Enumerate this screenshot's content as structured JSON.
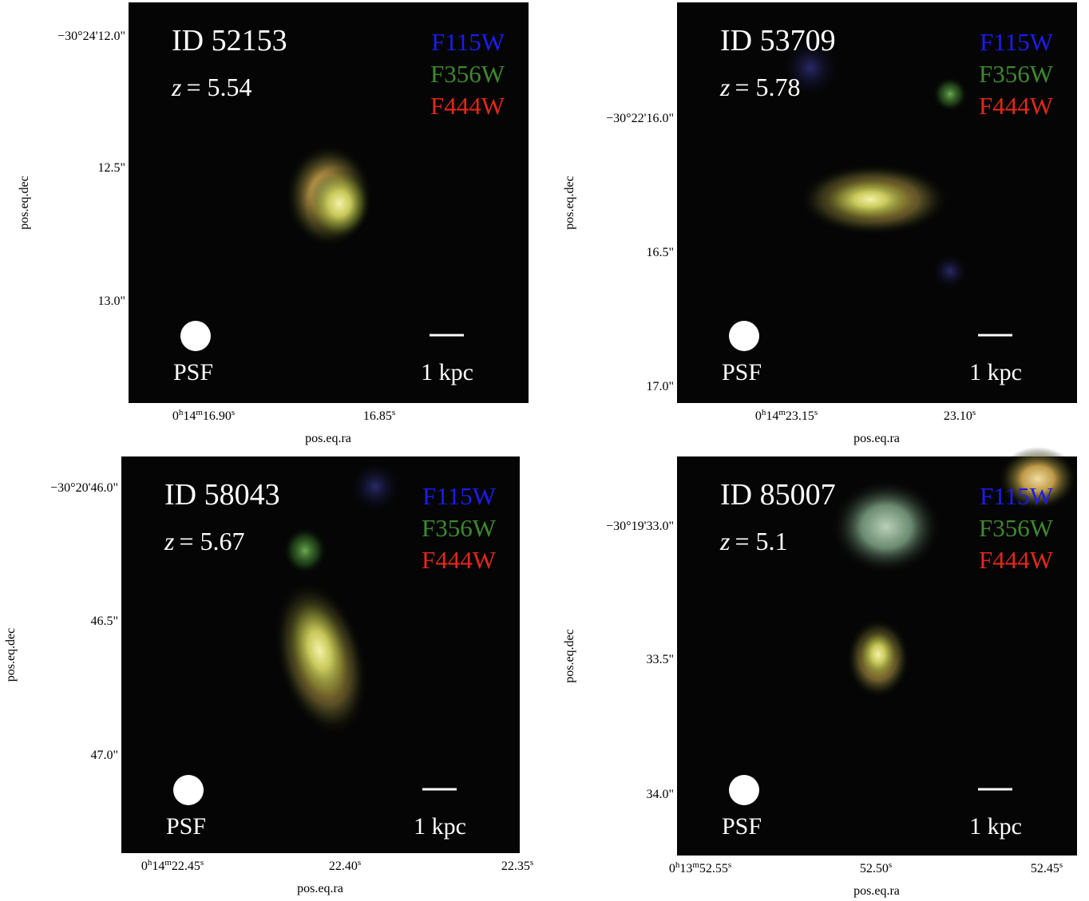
{
  "panels": [
    {
      "id": "ID 52153",
      "redshift": {
        "symbol": "z",
        "text": "= 5.54"
      },
      "filters": [
        {
          "name": "F115W",
          "color": "#1c1cf0"
        },
        {
          "name": "F356W",
          "color": "#3d8a2c"
        },
        {
          "name": "F444W",
          "color": "#e0291a"
        }
      ],
      "psf": "PSF",
      "scale": "1 kpc",
      "dec_ticks": [
        "−30°24'12.0\"",
        "12.5\"",
        "13.0\""
      ],
      "ra_ticks": [
        [
          "0",
          "h",
          "14",
          "m",
          "16.90",
          "s"
        ],
        [
          "16.85",
          "s"
        ]
      ],
      "xlabel": "pos.eq.ra",
      "ylabel": "pos.eq.dec"
    },
    {
      "id": "ID 53709",
      "redshift": {
        "symbol": "z",
        "text": "= 5.78"
      },
      "filters": [
        {
          "name": "F115W",
          "color": "#1c1cf0"
        },
        {
          "name": "F356W",
          "color": "#3d8a2c"
        },
        {
          "name": "F444W",
          "color": "#e0291a"
        }
      ],
      "psf": "PSF",
      "scale": "1 kpc",
      "dec_ticks": [
        "−30°22'16.0\"",
        "16.5\"",
        "17.0\""
      ],
      "ra_ticks": [
        [
          "0",
          "h",
          "14",
          "m",
          "23.15",
          "s"
        ],
        [
          "23.10",
          "s"
        ]
      ],
      "xlabel": "pos.eq.ra",
      "ylabel": "pos.eq.dec"
    },
    {
      "id": "ID 58043",
      "redshift": {
        "symbol": "z",
        "text": "= 5.67"
      },
      "filters": [
        {
          "name": "F115W",
          "color": "#1c1cf0"
        },
        {
          "name": "F356W",
          "color": "#3d8a2c"
        },
        {
          "name": "F444W",
          "color": "#e0291a"
        }
      ],
      "psf": "PSF",
      "scale": "1 kpc",
      "dec_ticks": [
        "−30°20'46.0\"",
        "46.5\"",
        "47.0\""
      ],
      "ra_ticks": [
        [
          "0",
          "h",
          "14",
          "m",
          "22.45",
          "s"
        ],
        [
          "22.40",
          "s"
        ],
        [
          "22.35",
          "s"
        ]
      ],
      "xlabel": "pos.eq.ra",
      "ylabel": "pos.eq.dec"
    },
    {
      "id": "ID 85007",
      "redshift": {
        "symbol": "z",
        "text": "= 5.1"
      },
      "filters": [
        {
          "name": "F115W",
          "color": "#1c1cf0"
        },
        {
          "name": "F356W",
          "color": "#3d8a2c"
        },
        {
          "name": "F444W",
          "color": "#e0291a"
        }
      ],
      "psf": "PSF",
      "scale": "1 kpc",
      "dec_ticks": [
        "−30°19'33.0\"",
        "33.5\"",
        "34.0\""
      ],
      "ra_ticks": [
        [
          "0",
          "h",
          "13",
          "m",
          "52.55",
          "s"
        ],
        [
          "52.50",
          "s"
        ],
        [
          "52.45",
          "s"
        ]
      ],
      "xlabel": "pos.eq.ra",
      "ylabel": "pos.eq.dec"
    }
  ]
}
